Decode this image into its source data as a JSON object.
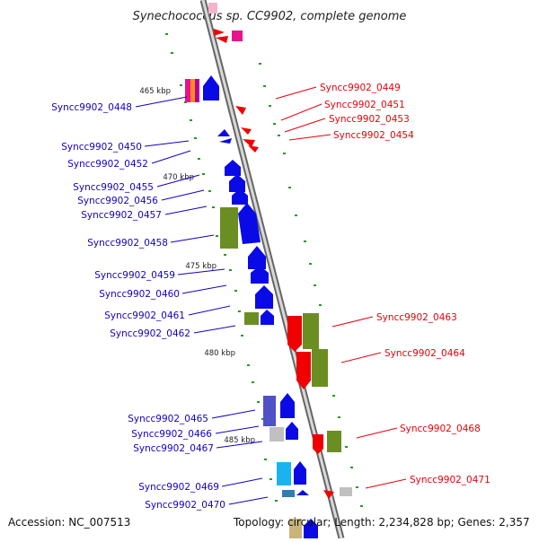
{
  "title": "Synechococcus sp. CC9902, complete genome",
  "accession": "Accession: NC_007513",
  "summary": "Topology: circular; Length: 2,234,828 bp; Genes: 2,357",
  "colors": {
    "backbone": "#a6a6a6",
    "forward_label": "#e8000b",
    "reverse_label": "#1400c8",
    "tick": "#1e9e1e",
    "blue_gene": "#0a0ae6",
    "red_gene": "#f00000",
    "olive_gene": "#6b8e23",
    "magenta_gene": "#e8148c",
    "cyan_gene": "#19b4f0"
  },
  "scale_labels": [
    "465 kbp",
    "470 kbp",
    "475 kbp",
    "480 kbp",
    "485 kbp"
  ],
  "left_labels": [
    "Syncc9902_0448",
    "Syncc9902_0450",
    "Syncc9902_0452",
    "Syncc9902_0455",
    "Syncc9902_0456",
    "Syncc9902_0457",
    "Syncc9902_0458",
    "Syncc9902_0459",
    "Syncc9902_0460",
    "Syncc9902_0461",
    "Syncc9902_0462",
    "Syncc9902_0465",
    "Syncc9902_0466",
    "Syncc9902_0467",
    "Syncc9902_0469",
    "Syncc9902_0470"
  ],
  "right_labels": [
    "Syncc9902_0449",
    "Syncc9902_0451",
    "Syncc9902_0453",
    "Syncc9902_0454",
    "Syncc9902_0463",
    "Syncc9902_0464",
    "Syncc9902_0468",
    "Syncc9902_0471"
  ]
}
